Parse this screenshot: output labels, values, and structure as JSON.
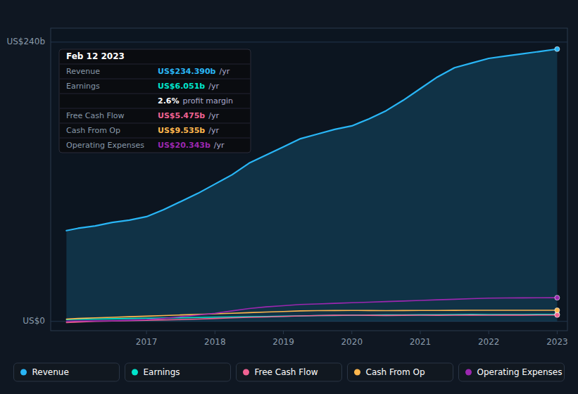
{
  "chart_data": {
    "type": "line",
    "x": [
      2015.83,
      2016.0,
      2016.25,
      2016.5,
      2016.75,
      2017.0,
      2017.25,
      2017.5,
      2017.75,
      2018.0,
      2018.25,
      2018.5,
      2018.75,
      2019.0,
      2019.25,
      2019.5,
      2019.75,
      2020.0,
      2020.25,
      2020.5,
      2020.75,
      2021.0,
      2021.25,
      2021.5,
      2021.75,
      2022.0,
      2022.25,
      2022.5,
      2022.75,
      2023.0
    ],
    "xlim": [
      2015.6,
      2023.15
    ],
    "xticks": [
      2017,
      2018,
      2019,
      2020,
      2021,
      2022,
      2023
    ],
    "ylim": [
      -8,
      252
    ],
    "yticks": [
      {
        "value": 0,
        "label": "US$0"
      },
      {
        "value": 240,
        "label": "US$240b"
      }
    ],
    "grid": true,
    "legend": "bottom",
    "series": [
      {
        "name": "Revenue",
        "type": "area",
        "color": "#29b6f6",
        "values": [
          78,
          80,
          82,
          85,
          87,
          90,
          96,
          103,
          110,
          118,
          126,
          136,
          143,
          150,
          157,
          161,
          165,
          168,
          174,
          181,
          190,
          200,
          210,
          218,
          222,
          226,
          228,
          230,
          232,
          234
        ]
      },
      {
        "name": "Earnings",
        "type": "line",
        "color": "#00e5cc",
        "values": [
          1.5,
          1.8,
          2.0,
          2.2,
          2.5,
          2.7,
          2.9,
          3.1,
          3.3,
          3.6,
          3.8,
          4.0,
          4.2,
          4.5,
          4.7,
          5.0,
          5.1,
          5.3,
          5.4,
          5.5,
          5.6,
          5.7,
          5.8,
          5.9,
          6.0,
          5.9,
          5.85,
          5.9,
          6.0,
          6.051
        ]
      },
      {
        "name": "Free Cash Flow",
        "type": "line",
        "color": "#f06292",
        "values": [
          -1.0,
          -0.5,
          0.0,
          0.3,
          0.6,
          1.0,
          1.2,
          1.5,
          2.0,
          2.5,
          3.0,
          3.5,
          3.8,
          4.2,
          4.7,
          5.0,
          5.2,
          5.3,
          5.2,
          5.1,
          5.2,
          5.3,
          5.2,
          5.3,
          5.35,
          5.3,
          5.35,
          5.4,
          5.45,
          5.475
        ]
      },
      {
        "name": "Cash From Op",
        "type": "line",
        "color": "#ffb74d",
        "values": [
          2.0,
          2.5,
          3.0,
          3.5,
          4.0,
          4.5,
          5.0,
          5.5,
          6.0,
          6.5,
          7.0,
          7.5,
          8.0,
          8.5,
          9.0,
          9.2,
          9.3,
          9.4,
          9.3,
          9.2,
          9.3,
          9.35,
          9.4,
          9.45,
          9.5,
          9.5,
          9.5,
          9.52,
          9.53,
          9.535
        ]
      },
      {
        "name": "Operating Expenses",
        "type": "line",
        "color": "#9c27b0",
        "values": [
          0.2,
          0.3,
          0.4,
          0.5,
          1.0,
          1.5,
          2.5,
          4.0,
          5.5,
          7.0,
          9.0,
          11.0,
          12.5,
          13.5,
          14.5,
          15.0,
          15.5,
          16.0,
          16.5,
          17.0,
          17.5,
          18.0,
          18.5,
          19.0,
          19.5,
          20.0,
          20.1,
          20.2,
          20.28,
          20.343
        ]
      }
    ],
    "annotations": [
      {
        "title": "Feb 12 2023",
        "rows": [
          {
            "label": "Revenue",
            "text": "US$234.390b",
            "suffix": "/yr",
            "color": "#29b6f6"
          },
          {
            "label": "Earnings",
            "text": "US$6.051b",
            "suffix": "/yr",
            "color": "#00e5cc"
          },
          {
            "text": "2.6%",
            "suffix": "profit margin",
            "color": "#ffffff"
          },
          {
            "label": "Free Cash Flow",
            "text": "US$5.475b",
            "suffix": "/yr",
            "color": "#f06292"
          },
          {
            "label": "Cash From Op",
            "text": "US$9.535b",
            "suffix": "/yr",
            "color": "#ffb74d"
          },
          {
            "label": "Operating Expenses",
            "text": "US$20.343b",
            "suffix": "/yr",
            "color": "#9c27b0"
          }
        ]
      }
    ]
  }
}
